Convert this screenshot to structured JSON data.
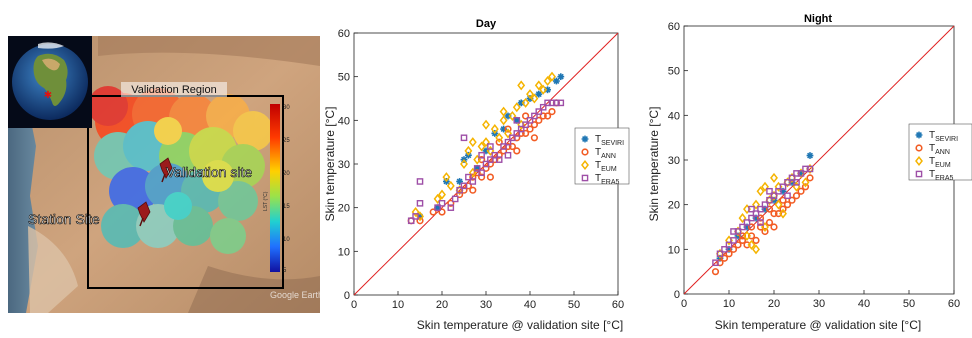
{
  "map": {
    "region_label": "Validation Region",
    "validation_label": "Validation site",
    "station_label": "Station Site",
    "watermark": "Google Earth",
    "colorbar_ticks": [
      "30",
      "25",
      "20",
      "15",
      "10",
      "5"
    ],
    "colorbar_label": "LST (°C)",
    "colors": {
      "desert": "#c9a27a",
      "ocean": "#5d7890",
      "marker": "#9b1b1b"
    }
  },
  "chart_data": [
    {
      "type": "scatter",
      "title": "Day",
      "xlabel": "Skin temperature @ validation site [°C]",
      "ylabel": "Skin temperature [°C]",
      "xlim": [
        0,
        60
      ],
      "ylim": [
        0,
        60
      ],
      "xticks": [
        "0",
        "10",
        "20",
        "30",
        "40",
        "50",
        "60"
      ],
      "yticks": [
        "0",
        "10",
        "20",
        "30",
        "40",
        "50",
        "60"
      ],
      "identity_line": true,
      "grid": false,
      "legend_position": "right",
      "series": [
        {
          "name": "T",
          "sub": "SEVIRI",
          "color": "#1f77b4",
          "marker": "asterisk",
          "points": [
            [
              15,
              18
            ],
            [
              19,
              20
            ],
            [
              21,
              26
            ],
            [
              24,
              26
            ],
            [
              25,
              31
            ],
            [
              26,
              32
            ],
            [
              28,
              29
            ],
            [
              30,
              33
            ],
            [
              32,
              37
            ],
            [
              34,
              38
            ],
            [
              35,
              41
            ],
            [
              37,
              40
            ],
            [
              38,
              44
            ],
            [
              40,
              45
            ],
            [
              42,
              46
            ],
            [
              44,
              47
            ],
            [
              46,
              49
            ],
            [
              47,
              50
            ]
          ]
        },
        {
          "name": "T",
          "sub": "ANN",
          "color": "#f25c24",
          "marker": "circle",
          "points": [
            [
              13,
              17
            ],
            [
              15,
              17
            ],
            [
              18,
              19
            ],
            [
              20,
              19
            ],
            [
              22,
              21
            ],
            [
              24,
              23
            ],
            [
              25,
              24
            ],
            [
              26,
              25
            ],
            [
              27,
              27
            ],
            [
              28,
              28
            ],
            [
              29,
              27
            ],
            [
              30,
              29
            ],
            [
              31,
              30
            ],
            [
              32,
              31
            ],
            [
              33,
              32
            ],
            [
              34,
              33
            ],
            [
              35,
              34
            ],
            [
              36,
              34
            ],
            [
              37,
              36
            ],
            [
              38,
              37
            ],
            [
              39,
              37
            ],
            [
              40,
              38
            ],
            [
              41,
              39
            ],
            [
              42,
              40
            ],
            [
              43,
              41
            ],
            [
              44,
              41
            ],
            [
              45,
              42
            ],
            [
              46,
              44
            ],
            [
              29,
              31
            ],
            [
              33,
              35
            ],
            [
              37,
              33
            ],
            [
              27,
              24
            ],
            [
              35,
              38
            ],
            [
              31,
              27
            ],
            [
              39,
              41
            ],
            [
              41,
              36
            ]
          ]
        },
        {
          "name": "T",
          "sub": "EUM",
          "color": "#f5b400",
          "marker": "diamond",
          "points": [
            [
              14,
              19
            ],
            [
              15,
              18
            ],
            [
              19,
              22
            ],
            [
              20,
              23
            ],
            [
              21,
              27
            ],
            [
              22,
              25
            ],
            [
              24,
              24
            ],
            [
              25,
              30
            ],
            [
              26,
              33
            ],
            [
              27,
              28
            ],
            [
              28,
              31
            ],
            [
              29,
              34
            ],
            [
              30,
              35
            ],
            [
              31,
              33
            ],
            [
              32,
              38
            ],
            [
              33,
              36
            ],
            [
              34,
              40
            ],
            [
              35,
              37
            ],
            [
              36,
              41
            ],
            [
              37,
              43
            ],
            [
              38,
              39
            ],
            [
              39,
              44
            ],
            [
              40,
              46
            ],
            [
              41,
              45
            ],
            [
              42,
              48
            ],
            [
              43,
              47
            ],
            [
              44,
              49
            ],
            [
              45,
              50
            ],
            [
              38,
              48
            ],
            [
              34,
              42
            ],
            [
              27,
              35
            ],
            [
              30,
              39
            ]
          ]
        },
        {
          "name": "T",
          "sub": "ERA5",
          "color": "#9e4fa7",
          "marker": "square",
          "points": [
            [
              13,
              17
            ],
            [
              14,
              18
            ],
            [
              15,
              21
            ],
            [
              15,
              26
            ],
            [
              19,
              20
            ],
            [
              20,
              21
            ],
            [
              22,
              20
            ],
            [
              23,
              22
            ],
            [
              24,
              24
            ],
            [
              25,
              25
            ],
            [
              25,
              36
            ],
            [
              26,
              27
            ],
            [
              27,
              26
            ],
            [
              28,
              29
            ],
            [
              29,
              28
            ],
            [
              30,
              30
            ],
            [
              31,
              31
            ],
            [
              32,
              32
            ],
            [
              33,
              31
            ],
            [
              34,
              34
            ],
            [
              35,
              35
            ],
            [
              36,
              36
            ],
            [
              37,
              37
            ],
            [
              38,
              38
            ],
            [
              39,
              39
            ],
            [
              40,
              40
            ],
            [
              41,
              41
            ],
            [
              42,
              42
            ],
            [
              43,
              43
            ],
            [
              44,
              44
            ],
            [
              45,
              44
            ],
            [
              46,
              44
            ],
            [
              47,
              44
            ],
            [
              31,
              34
            ],
            [
              35,
              32
            ],
            [
              37,
              40
            ],
            [
              29,
              32
            ]
          ]
        }
      ]
    },
    {
      "type": "scatter",
      "title": "Night",
      "xlabel": "Skin temperature @ validation site [°C]",
      "ylabel": "Skin temperature [°C]",
      "xlim": [
        0,
        60
      ],
      "ylim": [
        0,
        60
      ],
      "xticks": [
        "0",
        "10",
        "20",
        "30",
        "40",
        "50",
        "60"
      ],
      "yticks": [
        "0",
        "10",
        "20",
        "30",
        "40",
        "50",
        "60"
      ],
      "identity_line": true,
      "grid": false,
      "legend_position": "right",
      "series": [
        {
          "name": "T",
          "sub": "SEVIRI",
          "color": "#1f77b4",
          "marker": "asterisk",
          "points": [
            [
              8,
              8
            ],
            [
              10,
              10
            ],
            [
              12,
              13
            ],
            [
              14,
              15
            ],
            [
              16,
              17
            ],
            [
              18,
              19
            ],
            [
              20,
              21
            ],
            [
              22,
              23
            ],
            [
              24,
              25
            ],
            [
              26,
              27
            ],
            [
              28,
              31
            ]
          ]
        },
        {
          "name": "T",
          "sub": "ANN",
          "color": "#f25c24",
          "marker": "circle",
          "points": [
            [
              7,
              5
            ],
            [
              8,
              7
            ],
            [
              9,
              8
            ],
            [
              10,
              9
            ],
            [
              11,
              10
            ],
            [
              12,
              11
            ],
            [
              13,
              12
            ],
            [
              14,
              11
            ],
            [
              15,
              13
            ],
            [
              16,
              12
            ],
            [
              17,
              15
            ],
            [
              18,
              14
            ],
            [
              19,
              16
            ],
            [
              20,
              15
            ],
            [
              21,
              18
            ],
            [
              22,
              19
            ],
            [
              23,
              20
            ],
            [
              24,
              21
            ],
            [
              25,
              22
            ],
            [
              26,
              23
            ],
            [
              27,
              24
            ],
            [
              28,
              26
            ],
            [
              15,
              15
            ],
            [
              19,
              19
            ],
            [
              22,
              21
            ],
            [
              17,
              17
            ],
            [
              13,
              13
            ],
            [
              20,
              18
            ]
          ]
        },
        {
          "name": "T",
          "sub": "EUM",
          "color": "#f5b400",
          "marker": "diamond",
          "points": [
            [
              8,
              9
            ],
            [
              10,
              12
            ],
            [
              12,
              14
            ],
            [
              13,
              17
            ],
            [
              14,
              19
            ],
            [
              15,
              11
            ],
            [
              16,
              20
            ],
            [
              17,
              23
            ],
            [
              18,
              15
            ],
            [
              19,
              21
            ],
            [
              20,
              22
            ],
            [
              21,
              24
            ],
            [
              22,
              18
            ],
            [
              23,
              25
            ],
            [
              24,
              26
            ],
            [
              25,
              24
            ],
            [
              26,
              27
            ],
            [
              27,
              25
            ],
            [
              28,
              28
            ],
            [
              16,
              10
            ],
            [
              18,
              24
            ],
            [
              21,
              20
            ],
            [
              14,
              13
            ],
            [
              20,
              26
            ]
          ]
        },
        {
          "name": "T",
          "sub": "ERA5",
          "color": "#9e4fa7",
          "marker": "square",
          "points": [
            [
              7,
              7
            ],
            [
              8,
              9
            ],
            [
              9,
              10
            ],
            [
              10,
              11
            ],
            [
              11,
              12
            ],
            [
              12,
              14
            ],
            [
              13,
              15
            ],
            [
              14,
              16
            ],
            [
              15,
              17
            ],
            [
              16,
              18
            ],
            [
              17,
              19
            ],
            [
              18,
              20
            ],
            [
              19,
              21
            ],
            [
              20,
              22
            ],
            [
              21,
              23
            ],
            [
              22,
              24
            ],
            [
              23,
              25
            ],
            [
              24,
              26
            ],
            [
              25,
              27
            ],
            [
              26,
              27
            ],
            [
              27,
              28
            ],
            [
              28,
              28
            ],
            [
              11,
              14
            ],
            [
              15,
              19
            ],
            [
              19,
              23
            ],
            [
              23,
              22
            ],
            [
              25,
              25
            ],
            [
              17,
              16
            ]
          ]
        }
      ]
    }
  ]
}
